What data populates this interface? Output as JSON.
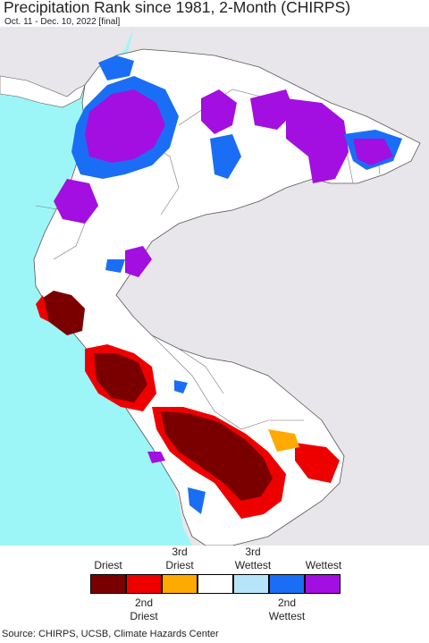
{
  "title": "Precipitation Rank since 1981, 2-Month (CHIRPS)",
  "subtitle": "Oct. 11 - Dec. 10, 2022 [final]",
  "legend": {
    "top_labels": [
      {
        "lines": [
          "Driest"
        ],
        "col": 0
      },
      {
        "lines": [
          "3rd",
          "Driest"
        ],
        "col": 2
      },
      {
        "lines": [
          "3rd",
          "Wettest"
        ],
        "col": 4
      },
      {
        "lines": [
          "Wettest"
        ],
        "col": 6
      }
    ],
    "bottom_labels": [
      {
        "lines": [
          "2nd",
          "Driest"
        ],
        "col": 1
      },
      {
        "lines": [
          "2nd",
          "Wettest"
        ],
        "col": 5
      }
    ],
    "colors": [
      "#7a0000",
      "#ee0000",
      "#ffaa00",
      "#ffffff",
      "#b8e4fa",
      "#1a6ef5",
      "#a20fe0"
    ]
  },
  "colors": {
    "ocean": "#9cf6f7",
    "land_outside": "#e8e6ea",
    "land": "#ffffff",
    "border": "#555555"
  },
  "source": "Source: CHIRPS, UCSB, Climate Hazards Center"
}
